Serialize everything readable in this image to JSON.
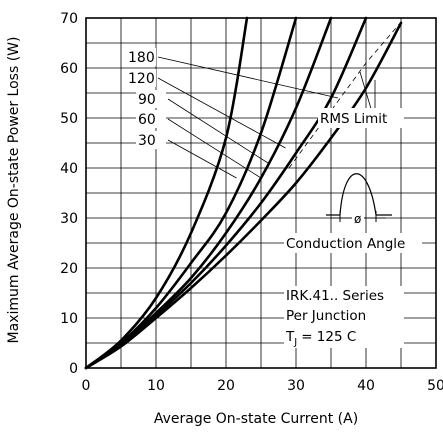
{
  "chart_data": {
    "type": "line",
    "xlabel": "Average On-state Current (A)",
    "ylabel": "Maximum Average On-state Power Loss (W)",
    "xlim": [
      0,
      50
    ],
    "ylim": [
      0,
      70
    ],
    "x_ticks": [
      "0",
      "10",
      "20",
      "30",
      "40",
      "50"
    ],
    "y_ticks": [
      "0",
      "10",
      "20",
      "30",
      "40",
      "50",
      "60",
      "70"
    ],
    "grid": true,
    "series": [
      {
        "name": "30",
        "x": [
          0,
          5,
          10,
          15,
          20,
          23
        ],
        "y": [
          0,
          5.5,
          14,
          27,
          46,
          70
        ]
      },
      {
        "name": "60",
        "x": [
          0,
          5,
          10,
          15,
          20,
          25,
          30
        ],
        "y": [
          0,
          5,
          12,
          21,
          31,
          47,
          70
        ]
      },
      {
        "name": "90",
        "x": [
          0,
          5,
          10,
          15,
          20,
          25,
          30,
          35
        ],
        "y": [
          0,
          4.7,
          11,
          18,
          27,
          38,
          52,
          70
        ]
      },
      {
        "name": "120",
        "x": [
          0,
          5,
          10,
          15,
          20,
          25,
          30,
          35,
          40
        ],
        "y": [
          0,
          4.5,
          10.5,
          17,
          24.5,
          33,
          43,
          54,
          70
        ]
      },
      {
        "name": "180",
        "x": [
          0,
          5,
          10,
          15,
          20,
          25,
          30,
          35,
          40,
          45
        ],
        "y": [
          0,
          4.3,
          10,
          16,
          22.5,
          29.5,
          37,
          46,
          56,
          69
        ]
      }
    ],
    "annotations": {
      "rms_limit": "RMS Limit",
      "conduction_angle": "Conduction Angle",
      "phi_symbol": "ø",
      "series_text": "IRK.41.. Series",
      "junction_text": "Per Junction",
      "tj_text": "T",
      "tj_sub": "J",
      "tj_value": "= 125  C"
    }
  }
}
